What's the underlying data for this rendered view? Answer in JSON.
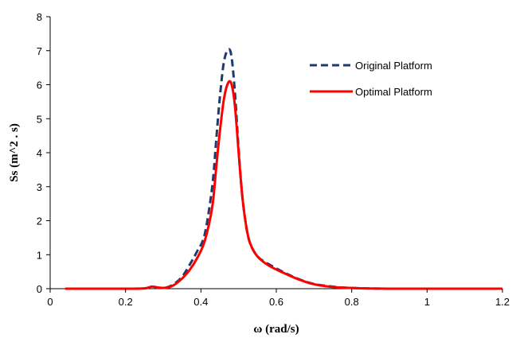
{
  "chart_data": {
    "type": "line",
    "title": "",
    "xlabel": "ω (rad/s)",
    "ylabel": "Ss (m^2 . s)",
    "xlim": [
      0,
      1.2
    ],
    "ylim": [
      0,
      8
    ],
    "xticks": [
      "0",
      "0.2",
      "0.4",
      "0.6",
      "0.8",
      "1",
      "1.2"
    ],
    "yticks": [
      "0",
      "1",
      "2",
      "3",
      "4",
      "5",
      "6",
      "7",
      "8"
    ],
    "grid": false,
    "legend_position": "top-right",
    "series": [
      {
        "name": "Original Platform",
        "color": "#1f3a6e",
        "style": "dashed",
        "x": [
          0.04,
          0.2,
          0.25,
          0.27,
          0.29,
          0.31,
          0.33,
          0.35,
          0.37,
          0.39,
          0.41,
          0.43,
          0.44,
          0.45,
          0.46,
          0.47,
          0.48,
          0.49,
          0.5,
          0.51,
          0.52,
          0.53,
          0.55,
          0.58,
          0.62,
          0.66,
          0.7,
          0.75,
          0.8,
          0.9,
          1.0,
          1.2
        ],
        "y": [
          0.0,
          0.0,
          0.01,
          0.05,
          0.02,
          0.04,
          0.15,
          0.35,
          0.7,
          1.1,
          1.6,
          3.0,
          4.3,
          5.6,
          6.6,
          7.0,
          6.9,
          5.8,
          4.1,
          2.7,
          1.85,
          1.35,
          0.95,
          0.72,
          0.48,
          0.28,
          0.14,
          0.06,
          0.02,
          0.0,
          0.0,
          0.0
        ]
      },
      {
        "name": "Optimal Platform",
        "color": "#ff0000",
        "style": "solid",
        "x": [
          0.04,
          0.2,
          0.25,
          0.27,
          0.29,
          0.31,
          0.33,
          0.35,
          0.37,
          0.39,
          0.41,
          0.43,
          0.44,
          0.45,
          0.46,
          0.47,
          0.48,
          0.49,
          0.5,
          0.51,
          0.52,
          0.53,
          0.55,
          0.58,
          0.62,
          0.66,
          0.7,
          0.75,
          0.8,
          0.9,
          1.0,
          1.2
        ],
        "y": [
          0.0,
          0.0,
          0.01,
          0.06,
          0.03,
          0.03,
          0.12,
          0.3,
          0.55,
          0.9,
          1.4,
          2.4,
          3.5,
          4.6,
          5.5,
          6.0,
          6.05,
          5.4,
          4.0,
          2.7,
          1.85,
          1.35,
          0.95,
          0.68,
          0.46,
          0.27,
          0.13,
          0.05,
          0.02,
          0.0,
          0.0,
          0.0
        ]
      }
    ]
  }
}
